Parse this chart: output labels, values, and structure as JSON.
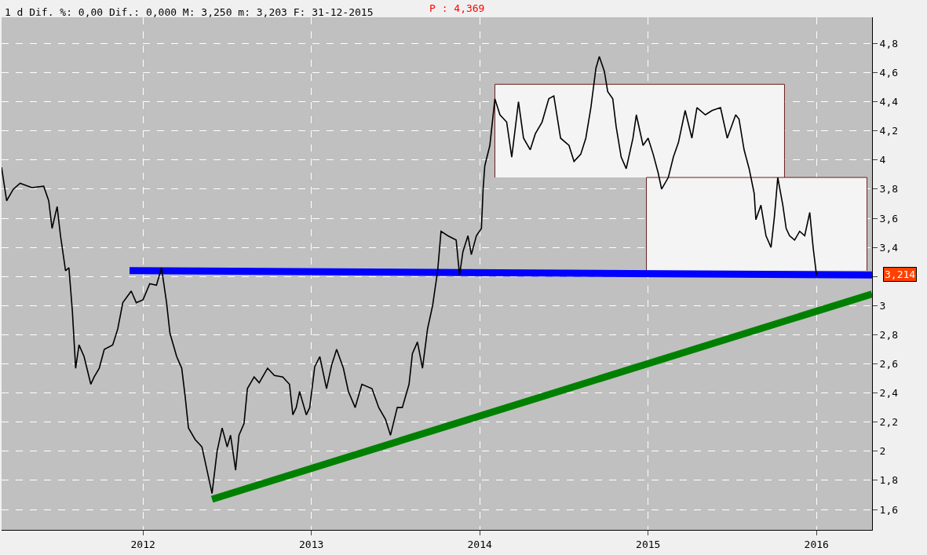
{
  "chart_data": {
    "type": "line",
    "title": "1 d Dif. %: 0,00 Dif.: 0,000 M: 3,250 m: 3,203 F: 31-12-2015",
    "annotations": [
      "P : 4,369",
      {
        "text": "3,214",
        "x": 2016.33,
        "y": 3.214
      }
    ],
    "xlim": [
      2011.16,
      2016.33
    ],
    "xticks": [
      2012,
      2013,
      2014,
      2015,
      2016
    ],
    "ylim": [
      1.46,
      4.98
    ],
    "yticks": [
      {
        "value": 1.6,
        "label": "1,6"
      },
      {
        "value": 1.8,
        "label": "1,8"
      },
      2,
      {
        "value": 2.2,
        "label": "2,2"
      },
      {
        "value": 2.4,
        "label": "2,4"
      },
      {
        "value": 2.6,
        "label": "2,6"
      },
      {
        "value": 2.8,
        "label": "2,8"
      },
      3,
      {
        "value": 3.2,
        "label": null
      },
      {
        "value": 3.4,
        "label": "3,4"
      },
      {
        "value": 3.6,
        "label": "3,6"
      },
      {
        "value": 3.8,
        "label": "3,8"
      },
      4,
      {
        "value": 4.2,
        "label": "4,2"
      },
      {
        "value": 4.4,
        "label": "4,4"
      },
      {
        "value": 4.6,
        "label": "4,6"
      },
      {
        "value": 4.8,
        "label": "4,8"
      }
    ],
    "grid": true,
    "series": [
      {
        "type": "area",
        "color": "#f4f4f4",
        "x": [
          2014.09,
          2014.09,
          2015.81,
          2015.81
        ],
        "values": [
          3.88,
          4.52,
          4.52,
          3.88
        ]
      },
      {
        "type": "area",
        "color": "#f4f4f4",
        "x": [
          2014.99,
          2014.99,
          2016.3,
          2016.3
        ],
        "values": [
          3.24,
          3.88,
          3.88,
          3.24
        ]
      },
      {
        "color": "#000000",
        "x": [
          2011.16,
          2011.19,
          2011.23,
          2011.27,
          2011.34,
          2011.41,
          2011.44,
          2011.46,
          2011.49,
          2011.51,
          2011.54,
          2011.56,
          2011.58,
          2011.6,
          2011.62,
          2011.65,
          2011.69,
          2011.71,
          2011.74,
          2011.77,
          2011.82,
          2011.85,
          2011.88,
          2011.93,
          2011.96,
          2012.0,
          2012.04,
          2012.08,
          2012.11,
          2012.14,
          2012.16,
          2012.2,
          2012.23,
          2012.25,
          2012.27,
          2012.31,
          2012.35,
          2012.38,
          2012.41,
          2012.44,
          2012.47,
          2012.5,
          2012.52,
          2012.55,
          2012.57,
          2012.6,
          2012.62,
          2012.66,
          2012.69,
          2012.74,
          2012.78,
          2012.83,
          2012.87,
          2012.89,
          2012.91,
          2012.93,
          2012.97,
          2012.99,
          2013.02,
          2013.05,
          2013.09,
          2013.12,
          2013.15,
          2013.19,
          2013.22,
          2013.26,
          2013.3,
          2013.36,
          2013.4,
          2013.44,
          2013.47,
          2013.51,
          2013.54,
          2013.58,
          2013.6,
          2013.63,
          2013.66,
          2013.69,
          2013.72,
          2013.75,
          2013.77,
          2013.81,
          2013.86,
          2013.88,
          2013.9,
          2013.93,
          2013.95,
          2013.98,
          2014.01,
          2014.02,
          2014.03,
          2014.06,
          2014.09,
          2014.12,
          2014.16,
          2014.19,
          2014.23,
          2014.26,
          2014.3,
          2014.33,
          2014.37,
          2014.41,
          2014.44,
          2014.48,
          2014.53,
          2014.56,
          2014.6,
          2014.63,
          2014.66,
          2014.69,
          2014.71,
          2014.74,
          2014.76,
          2014.79,
          2014.81,
          2014.84,
          2014.87,
          2014.91,
          2014.93,
          2014.97,
          2015.0,
          2015.03,
          2015.06,
          2015.08,
          2015.12,
          2015.15,
          2015.18,
          2015.22,
          2015.26,
          2015.29,
          2015.34,
          2015.38,
          2015.43,
          2015.47,
          2015.52,
          2015.54,
          2015.57,
          2015.6,
          2015.63,
          2015.64,
          2015.67,
          2015.7,
          2015.73,
          2015.75,
          2015.77,
          2015.8,
          2015.82,
          2015.84,
          2015.87,
          2015.9,
          2015.93,
          2015.96,
          2015.98,
          2016.0
        ],
        "values": [
          3.95,
          3.72,
          3.8,
          3.84,
          3.81,
          3.82,
          3.72,
          3.53,
          3.68,
          3.48,
          3.24,
          3.26,
          2.97,
          2.57,
          2.73,
          2.65,
          2.46,
          2.51,
          2.57,
          2.7,
          2.73,
          2.84,
          3.02,
          3.1,
          3.02,
          3.04,
          3.15,
          3.14,
          3.26,
          3.02,
          2.81,
          2.65,
          2.57,
          2.38,
          2.16,
          2.08,
          2.03,
          1.87,
          1.71,
          2.0,
          2.16,
          2.03,
          2.11,
          1.87,
          2.11,
          2.19,
          2.43,
          2.51,
          2.47,
          2.57,
          2.52,
          2.51,
          2.46,
          2.25,
          2.3,
          2.41,
          2.25,
          2.3,
          2.58,
          2.65,
          2.43,
          2.59,
          2.7,
          2.57,
          2.41,
          2.3,
          2.46,
          2.43,
          2.3,
          2.22,
          2.11,
          2.3,
          2.3,
          2.46,
          2.67,
          2.75,
          2.57,
          2.84,
          3.0,
          3.24,
          3.51,
          3.48,
          3.45,
          3.21,
          3.37,
          3.48,
          3.35,
          3.48,
          3.53,
          3.8,
          3.96,
          4.1,
          4.42,
          4.31,
          4.26,
          4.02,
          4.4,
          4.15,
          4.07,
          4.18,
          4.26,
          4.42,
          4.44,
          4.15,
          4.1,
          3.99,
          4.04,
          4.15,
          4.36,
          4.63,
          4.71,
          4.61,
          4.47,
          4.42,
          4.23,
          4.02,
          3.94,
          4.15,
          4.31,
          4.1,
          4.15,
          4.04,
          3.91,
          3.8,
          3.88,
          4.02,
          4.12,
          4.34,
          4.15,
          4.36,
          4.31,
          4.34,
          4.36,
          4.15,
          4.31,
          4.28,
          4.07,
          3.94,
          3.77,
          3.59,
          3.69,
          3.48,
          3.4,
          3.61,
          3.88,
          3.69,
          3.53,
          3.48,
          3.45,
          3.51,
          3.48,
          3.64,
          3.4,
          3.21
        ]
      },
      {
        "color": "#0000ff",
        "x": [
          2011.92,
          2016.33
        ],
        "values": [
          3.24,
          3.21
        ]
      },
      {
        "color": "#008000",
        "x": [
          2012.41,
          2016.33
        ],
        "values": [
          1.67,
          3.08
        ]
      }
    ]
  }
}
